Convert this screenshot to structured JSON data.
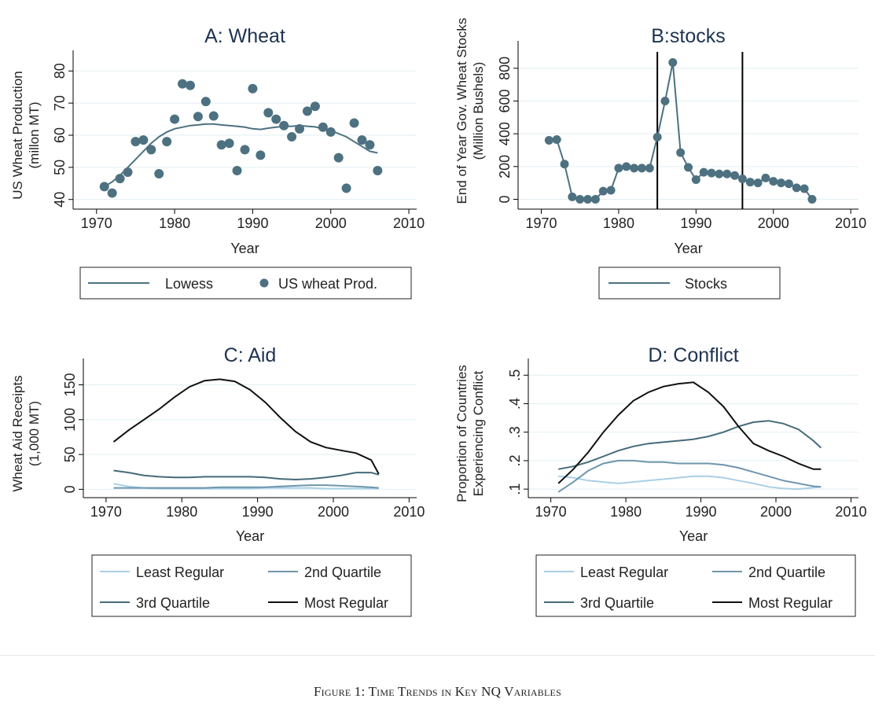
{
  "chart_data": [
    {
      "type": "scatter",
      "title": "A: Wheat",
      "xlabel": "Year",
      "ylabel": [
        "US Wheat Production",
        "(millon MT)"
      ],
      "xlim": [
        1967,
        2011
      ],
      "ylim": [
        37,
        83
      ],
      "xticks": [
        1970,
        1980,
        1990,
        2000,
        2010
      ],
      "yticks": [
        40,
        50,
        60,
        70,
        80
      ],
      "grid": true,
      "legend_position": "bottom",
      "series": [
        {
          "name": "Lowess",
          "kind": "line",
          "color": "#4d7180",
          "x": [
            1971,
            1972,
            1973,
            1974,
            1975,
            1976,
            1977,
            1978,
            1979,
            1980,
            1981,
            1982,
            1983,
            1984,
            1985,
            1986,
            1987,
            1988,
            1989,
            1990,
            1991,
            1992,
            1993,
            1994,
            1995,
            1996,
            1997,
            1998,
            1999,
            2000,
            2001,
            2002,
            2003,
            2004,
            2005,
            2006
          ],
          "y": [
            44,
            45.5,
            47.5,
            50,
            52.5,
            55,
            57.5,
            59.5,
            61,
            62,
            62.5,
            63,
            63.2,
            63.5,
            63.5,
            63.2,
            63,
            62.8,
            62.5,
            62,
            61.8,
            62.2,
            62.5,
            62.8,
            62.8,
            63,
            62.8,
            62.6,
            62,
            61.5,
            60.5,
            59.5,
            58,
            56.5,
            55,
            54.5
          ]
        },
        {
          "name": "US wheat Prod.",
          "kind": "scatter",
          "color": "#4d7180",
          "x": [
            1971,
            1972,
            1973,
            1974,
            1975,
            1976,
            1977,
            1978,
            1979,
            1980,
            1981,
            1982,
            1983,
            1984,
            1985,
            1986,
            1987,
            1988,
            1989,
            1990,
            1991,
            1992,
            1993,
            1994,
            1995,
            1996,
            1997,
            1998,
            1999,
            2000,
            2001,
            2002,
            2003,
            2004,
            2005,
            2006
          ],
          "y": [
            44,
            42,
            46.5,
            48.5,
            58,
            58.5,
            55.5,
            48,
            58,
            65,
            76,
            75.5,
            65.8,
            70.5,
            66,
            57,
            57.5,
            49,
            55.5,
            74.5,
            53.8,
            67,
            65,
            63,
            59.5,
            62,
            67.5,
            69,
            62.5,
            61,
            53,
            43.5,
            63.8,
            58.5,
            57,
            49
          ]
        }
      ]
    },
    {
      "type": "line",
      "title": "B:stocks",
      "xlabel": "Year",
      "ylabel": [
        "End of Year Gov. Wheat Stocks",
        "(Million Bushels)"
      ],
      "xlim": [
        1967,
        2011
      ],
      "ylim": [
        -60,
        900
      ],
      "xticks": [
        1970,
        1980,
        1990,
        2000,
        2010
      ],
      "yticks": [
        0,
        200,
        400,
        600,
        800
      ],
      "grid": true,
      "vlines": [
        1985,
        1996
      ],
      "legend_position": "bottom",
      "series": [
        {
          "name": "Stocks",
          "color": "#4d7180",
          "markers": true,
          "x": [
            1971,
            1972,
            1973,
            1974,
            1975,
            1976,
            1977,
            1978,
            1979,
            1980,
            1981,
            1982,
            1983,
            1984,
            1985,
            1986,
            1987,
            1988,
            1989,
            1990,
            1991,
            1992,
            1993,
            1994,
            1995,
            1996,
            1997,
            1998,
            1999,
            2000,
            2001,
            2002,
            2003,
            2004,
            2005
          ],
          "y": [
            360,
            365,
            215,
            15,
            0,
            0,
            0,
            50,
            55,
            190,
            200,
            190,
            190,
            190,
            380,
            600,
            835,
            285,
            195,
            120,
            165,
            160,
            155,
            155,
            145,
            125,
            105,
            100,
            130,
            110,
            100,
            95,
            70,
            65,
            0
          ]
        }
      ]
    },
    {
      "type": "line",
      "title": "C: Aid",
      "xlabel": "Year",
      "ylabel": [
        "Wheat Aid Receipts",
        "(1,000 MT)"
      ],
      "xlim": [
        1967,
        2011
      ],
      "ylim": [
        -12,
        172
      ],
      "xticks": [
        1970,
        1980,
        1990,
        2000,
        2010
      ],
      "yticks": [
        0,
        50,
        100,
        150
      ],
      "grid": true,
      "legend_position": "bottom",
      "x": [
        1971,
        1973,
        1975,
        1977,
        1979,
        1981,
        1983,
        1985,
        1987,
        1989,
        1991,
        1993,
        1995,
        1997,
        1999,
        2001,
        2003,
        2005,
        2006
      ],
      "series": [
        {
          "name": "Least Regular",
          "color": "#a9cfe6",
          "values": [
            8,
            4,
            2,
            1,
            1,
            1,
            1,
            1,
            1,
            1,
            2,
            2,
            2,
            2,
            1,
            1,
            1,
            1,
            1
          ]
        },
        {
          "name": "2nd Quartile",
          "color": "#6e96ab",
          "values": [
            2,
            2,
            2,
            2,
            2,
            2,
            2,
            3,
            3,
            3,
            3,
            4,
            5,
            6,
            6,
            5,
            4,
            3,
            2
          ]
        },
        {
          "name": "3rd Quartile",
          "color": "#466a7a",
          "values": [
            27,
            24,
            20,
            18,
            17,
            17,
            18,
            18,
            18,
            18,
            17,
            15,
            14,
            15,
            17,
            20,
            24,
            24,
            21
          ]
        },
        {
          "name": "Most Regular",
          "color": "#111111",
          "values": [
            68,
            85,
            100,
            115,
            132,
            147,
            156,
            158,
            155,
            143,
            125,
            103,
            83,
            68,
            60,
            56,
            52,
            42,
            22
          ]
        }
      ]
    },
    {
      "type": "line",
      "title": "D: Conflict",
      "xlabel": "Year",
      "ylabel": [
        "Proportion of Countries",
        "Experiencing Conflict"
      ],
      "xlim": [
        1967,
        2011
      ],
      "ylim": [
        0.07,
        0.52
      ],
      "xticks": [
        1970,
        1980,
        1990,
        2000,
        2010
      ],
      "yticks": [
        0.1,
        0.2,
        0.3,
        0.4,
        0.5
      ],
      "ytick_labels": [
        ".1",
        ".2",
        ".3",
        ".4",
        ".5"
      ],
      "grid": true,
      "legend_position": "bottom",
      "x": [
        1971,
        1973,
        1975,
        1977,
        1979,
        1981,
        1983,
        1985,
        1987,
        1989,
        1991,
        1993,
        1995,
        1997,
        1999,
        2001,
        2003,
        2005,
        2006
      ],
      "series": [
        {
          "name": "Least Regular",
          "color": "#a9cfe6",
          "values": [
            0.145,
            0.14,
            0.13,
            0.125,
            0.12,
            0.125,
            0.13,
            0.135,
            0.14,
            0.145,
            0.145,
            0.14,
            0.13,
            0.12,
            0.108,
            0.102,
            0.1,
            0.105,
            0.108
          ]
        },
        {
          "name": "2nd Quartile",
          "color": "#6e96ab",
          "values": [
            0.09,
            0.125,
            0.165,
            0.19,
            0.2,
            0.2,
            0.195,
            0.195,
            0.19,
            0.19,
            0.19,
            0.185,
            0.175,
            0.16,
            0.145,
            0.13,
            0.12,
            0.11,
            0.108
          ]
        },
        {
          "name": "3rd Quartile",
          "color": "#466a7a",
          "values": [
            0.17,
            0.18,
            0.195,
            0.215,
            0.235,
            0.25,
            0.26,
            0.265,
            0.27,
            0.275,
            0.285,
            0.3,
            0.32,
            0.335,
            0.34,
            0.33,
            0.31,
            0.27,
            0.245
          ]
        },
        {
          "name": "Most Regular",
          "color": "#111111",
          "values": [
            0.12,
            0.17,
            0.23,
            0.3,
            0.36,
            0.41,
            0.44,
            0.46,
            0.47,
            0.475,
            0.44,
            0.39,
            0.32,
            0.26,
            0.235,
            0.215,
            0.19,
            0.17,
            0.17
          ]
        }
      ]
    }
  ],
  "caption": "Figure 1: Time Trends in Key NQ Variables"
}
